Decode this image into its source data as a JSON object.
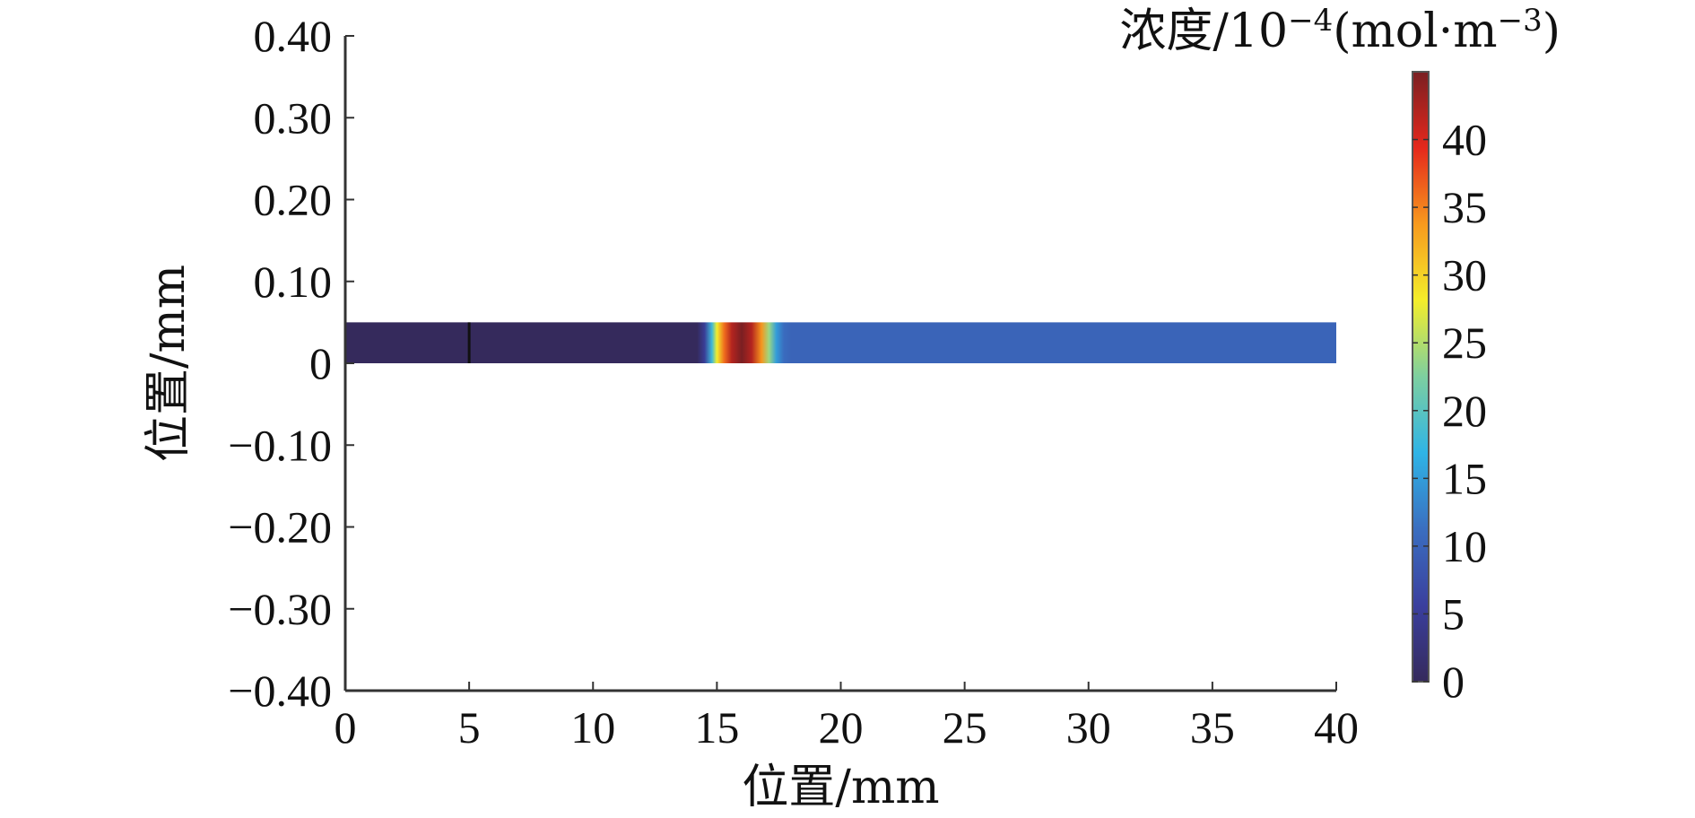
{
  "chart_data": {
    "type": "heatmap",
    "title": "",
    "xlabel": "位置/mm",
    "ylabel": "位置/mm",
    "xlim": [
      0,
      40
    ],
    "ylim": [
      -0.4,
      0.4
    ],
    "x_ticks": [
      "0",
      "5",
      "10",
      "15",
      "20",
      "25",
      "30",
      "35",
      "40"
    ],
    "y_ticks": [
      "0.40",
      "0.30",
      "0.20",
      "0.10",
      "0",
      "−0.10",
      "−0.20",
      "−0.30",
      "−0.40"
    ],
    "strip": {
      "x_range": [
        0,
        40
      ],
      "y_range": [
        0,
        0.05
      ]
    },
    "internal_boundary_x": 5,
    "concentration_profile": {
      "x": [
        0,
        14.2,
        14.5,
        14.8,
        15.0,
        15.3,
        15.6,
        16.0,
        16.4,
        16.8,
        17.1,
        17.4,
        17.7,
        18.0,
        40
      ],
      "value": [
        0,
        0,
        5,
        18,
        28,
        36,
        42,
        45,
        42,
        34,
        24,
        15,
        11,
        10,
        10
      ]
    },
    "colorbar": {
      "title": "浓度/10",
      "title_exp": "−4",
      "title_unit": "(mol·m",
      "title_unit_exp": "−3",
      "title_close": ")",
      "range": [
        0,
        45
      ],
      "ticks": [
        "0",
        "5",
        "10",
        "15",
        "20",
        "25",
        "30",
        "35",
        "40"
      ],
      "tick_values": [
        0,
        5,
        10,
        15,
        20,
        25,
        30,
        35,
        40
      ],
      "colors": [
        "#352a5c",
        "#3a3f9e",
        "#3a6ec0",
        "#2fb4e6",
        "#7dcfa0",
        "#f4ee2a",
        "#f79a1e",
        "#e5281c",
        "#7a1f22"
      ]
    }
  }
}
